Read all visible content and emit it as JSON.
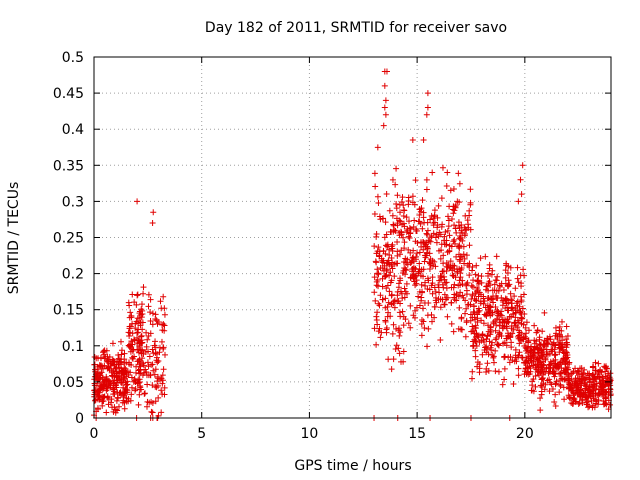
{
  "chart_data": {
    "type": "scatter",
    "title": "Day 182 of 2011, SRMTID for receiver savo",
    "xlabel": "GPS time / hours",
    "ylabel": "SRMTID / TECUs",
    "xlim": [
      0,
      24
    ],
    "ylim": [
      0,
      0.5
    ],
    "xticks": [
      0,
      5,
      10,
      15,
      20
    ],
    "yticks": [
      0,
      0.05,
      0.1,
      0.15,
      0.2,
      0.25,
      0.3,
      0.35,
      0.4,
      0.45,
      0.5
    ],
    "ytick_labels": [
      "0",
      "0.05",
      "0.1",
      "0.15",
      "0.2",
      "0.25",
      "0.3",
      "0.35",
      "0.4",
      "0.45",
      "0.5"
    ],
    "grid": true,
    "marker": "+",
    "series": [
      {
        "name": "SRMTID",
        "color": "#e00000",
        "clusters": [
          {
            "x_range": [
              0.0,
              1.6
            ],
            "y_mean": 0.05,
            "y_spread": 0.035,
            "count": 260
          },
          {
            "x_range": [
              1.6,
              2.3
            ],
            "y_mean": 0.1,
            "y_spread": 0.06,
            "count": 90
          },
          {
            "x_range": [
              2.0,
              3.3
            ],
            "y_mean": 0.08,
            "y_spread": 0.08,
            "count": 130
          },
          {
            "x_range": [
              13.0,
              14.6
            ],
            "y_mean": 0.2,
            "y_spread": 0.1,
            "count": 220
          },
          {
            "x_range": [
              14.6,
              17.5
            ],
            "y_mean": 0.22,
            "y_spread": 0.08,
            "count": 380
          },
          {
            "x_range": [
              17.5,
              20.0
            ],
            "y_mean": 0.14,
            "y_spread": 0.06,
            "count": 360
          },
          {
            "x_range": [
              20.0,
              22.0
            ],
            "y_mean": 0.08,
            "y_spread": 0.04,
            "count": 300
          },
          {
            "x_range": [
              22.0,
              24.0
            ],
            "y_mean": 0.045,
            "y_spread": 0.025,
            "count": 280
          }
        ],
        "highlights": [
          {
            "x": 2.0,
            "y": 0.3
          },
          {
            "x": 2.75,
            "y": 0.285
          },
          {
            "x": 2.72,
            "y": 0.27
          },
          {
            "x": 13.5,
            "y": 0.48
          },
          {
            "x": 13.6,
            "y": 0.48
          },
          {
            "x": 13.5,
            "y": 0.46
          },
          {
            "x": 13.55,
            "y": 0.44
          },
          {
            "x": 13.5,
            "y": 0.43
          },
          {
            "x": 13.55,
            "y": 0.42
          },
          {
            "x": 15.5,
            "y": 0.45
          },
          {
            "x": 15.5,
            "y": 0.43
          },
          {
            "x": 15.45,
            "y": 0.42
          },
          {
            "x": 14.8,
            "y": 0.385
          },
          {
            "x": 15.3,
            "y": 0.385
          },
          {
            "x": 13.45,
            "y": 0.405
          },
          {
            "x": 19.9,
            "y": 0.35
          },
          {
            "x": 19.8,
            "y": 0.33
          },
          {
            "x": 19.85,
            "y": 0.31
          },
          {
            "x": 19.7,
            "y": 0.3
          },
          {
            "x": 16.4,
            "y": 0.34
          },
          {
            "x": 15.7,
            "y": 0.34
          },
          {
            "x": 13.0,
            "y": 0.0
          },
          {
            "x": 14.1,
            "y": 0.0
          },
          {
            "x": 15.6,
            "y": 0.0
          },
          {
            "x": 17.5,
            "y": 0.0
          },
          {
            "x": 19.3,
            "y": 0.0
          },
          {
            "x": 0.1,
            "y": 0.0
          }
        ]
      }
    ]
  }
}
